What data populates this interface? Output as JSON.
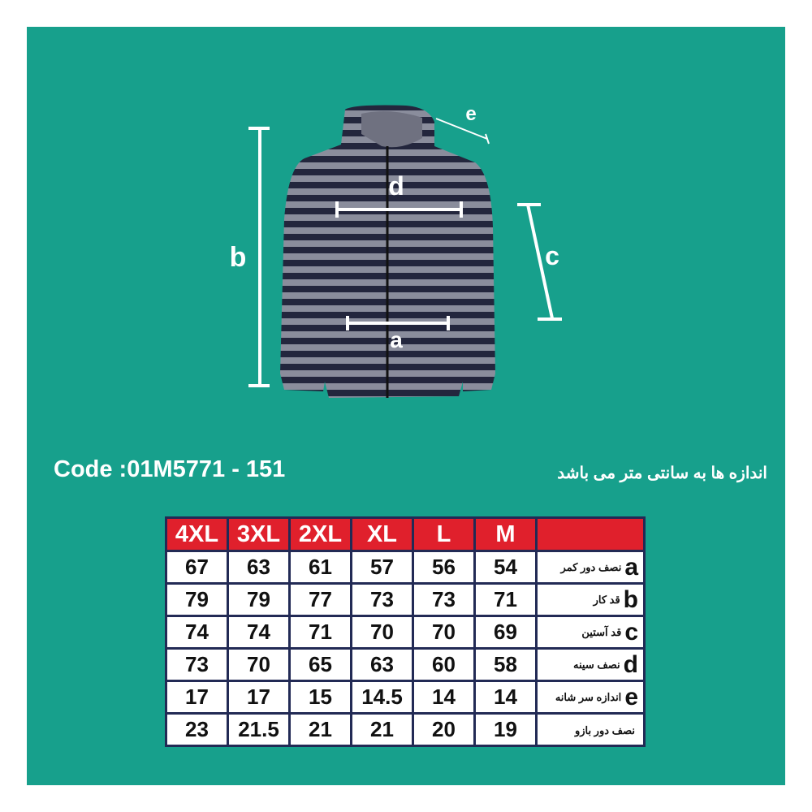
{
  "colors": {
    "background": "#17a08c",
    "header": "#e0202c",
    "grid": "#222a55"
  },
  "diagram": {
    "labels": {
      "a": "a",
      "b": "b",
      "c": "c",
      "d": "d",
      "e": "e"
    }
  },
  "code": "Code :01M5771 - 151",
  "note": "اندازه ها به سانتی متر می باشد",
  "table": {
    "sizes": [
      "4XL",
      "3XL",
      "2XL",
      "XL",
      "L",
      "M"
    ],
    "rows": [
      {
        "letter": "a",
        "label": "نصف دور کمر",
        "values": [
          "67",
          "63",
          "61",
          "57",
          "56",
          "54"
        ]
      },
      {
        "letter": "b",
        "label": "قد کار",
        "values": [
          "79",
          "79",
          "77",
          "73",
          "73",
          "71"
        ]
      },
      {
        "letter": "c",
        "label": "قد آستین",
        "values": [
          "74",
          "74",
          "71",
          "70",
          "70",
          "69"
        ]
      },
      {
        "letter": "d",
        "label": "نصف سینه",
        "values": [
          "73",
          "70",
          "65",
          "63",
          "60",
          "58"
        ]
      },
      {
        "letter": "e",
        "label": "اندازه سر شانه",
        "values": [
          "17",
          "17",
          "15",
          "14.5",
          "14",
          "14"
        ]
      },
      {
        "letter": "",
        "label": "نصف دور بازو",
        "values": [
          "23",
          "21.5",
          "21",
          "21",
          "20",
          "19"
        ]
      }
    ]
  }
}
